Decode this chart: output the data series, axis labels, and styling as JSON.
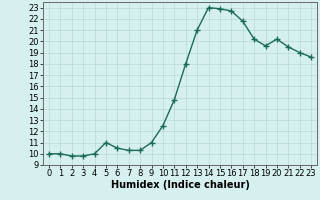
{
  "x": [
    0,
    1,
    2,
    3,
    4,
    5,
    6,
    7,
    8,
    9,
    10,
    11,
    12,
    13,
    14,
    15,
    16,
    17,
    18,
    19,
    20,
    21,
    22,
    23
  ],
  "y": [
    10,
    10,
    9.8,
    9.8,
    10,
    11,
    10.5,
    10.3,
    10.3,
    11,
    12.5,
    14.8,
    18,
    21,
    23,
    22.9,
    22.7,
    21.8,
    20.2,
    19.6,
    20.2,
    19.5,
    19,
    18.6
  ],
  "line_color": "#1a6b5a",
  "marker": "+",
  "marker_size": 4,
  "bg_color": "#d6f0f0",
  "grid_color": "#b8d8d8",
  "xlabel": "Humidex (Indice chaleur)",
  "xlim": [
    -0.5,
    23.5
  ],
  "ylim": [
    9,
    23.5
  ],
  "yticks": [
    9,
    10,
    11,
    12,
    13,
    14,
    15,
    16,
    17,
    18,
    19,
    20,
    21,
    22,
    23
  ],
  "xticks": [
    0,
    1,
    2,
    3,
    4,
    5,
    6,
    7,
    8,
    9,
    10,
    11,
    12,
    13,
    14,
    15,
    16,
    17,
    18,
    19,
    20,
    21,
    22,
    23
  ],
  "xlabel_fontsize": 7,
  "tick_fontsize": 6,
  "line_width": 1.0
}
